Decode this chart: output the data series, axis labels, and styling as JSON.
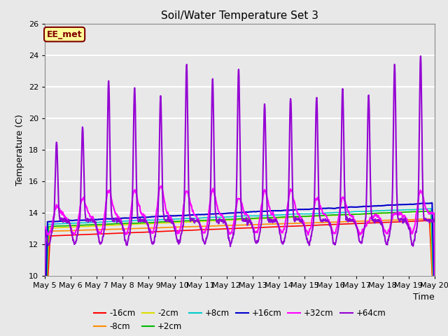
{
  "title": "Soil/Water Temperature Set 3",
  "xlabel": "Time",
  "ylabel": "Temperature (C)",
  "ylim": [
    10,
    26
  ],
  "yticks": [
    10,
    12,
    14,
    16,
    18,
    20,
    22,
    24,
    26
  ],
  "xlim": [
    0,
    15
  ],
  "xtick_labels": [
    "May 5",
    "May 6",
    "May 7",
    "May 8",
    "May 9",
    "May 10",
    "May 11",
    "May 12",
    "May 13",
    "May 14",
    "May 15",
    "May 16",
    "May 17",
    "May 18",
    "May 19",
    "May 20"
  ],
  "annotation_text": "EE_met",
  "annotation_box_color": "#FFFF99",
  "annotation_border_color": "#800000",
  "figure_bg_color": "#E8E8E8",
  "plot_bg_color": "#E8E8E8",
  "grid_color": "#FFFFFF",
  "series": {
    "-16cm": {
      "color": "#FF0000",
      "lw": 1.2
    },
    "-8cm": {
      "color": "#FF8C00",
      "lw": 1.2
    },
    "-2cm": {
      "color": "#DDDD00",
      "lw": 1.2
    },
    "+2cm": {
      "color": "#00BB00",
      "lw": 1.2
    },
    "+8cm": {
      "color": "#00CCCC",
      "lw": 1.2
    },
    "+16cm": {
      "color": "#0000CC",
      "lw": 1.5
    },
    "+32cm": {
      "color": "#FF00FF",
      "lw": 1.5
    },
    "+64cm": {
      "color": "#9400D3",
      "lw": 1.5
    }
  }
}
